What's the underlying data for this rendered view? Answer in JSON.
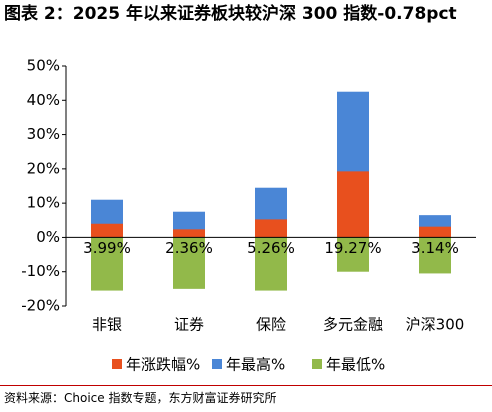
{
  "chart_data": {
    "type": "bar",
    "title": "图表 2：2025 年以来证券板块较沪深 300 指数-0.78pct",
    "source": "资料来源：Choice 指数专题，东方财富证券研究所",
    "categories": [
      "非银",
      "证券",
      "保险",
      "多元金融",
      "沪深300"
    ],
    "series": [
      {
        "name": "年涨跌幅%",
        "color": "#e8501e",
        "values": [
          3.99,
          2.36,
          5.26,
          19.27,
          3.14
        ],
        "value_labels": [
          "3.99%",
          "2.36%",
          "5.26%",
          "19.27%",
          "3.14%"
        ]
      },
      {
        "name": "年最高%",
        "color": "#4a86d6",
        "values": [
          11,
          7.5,
          14.5,
          42.5,
          6.5
        ]
      },
      {
        "name": "年最低%",
        "color": "#92b94a",
        "values": [
          -15.5,
          -15,
          -15.5,
          -10,
          -10.5
        ]
      }
    ],
    "ylim": [
      -20,
      50
    ],
    "yticks": [
      {
        "value": -20,
        "label": "-20%"
      },
      {
        "value": -10,
        "label": "-10%"
      },
      {
        "value": 0,
        "label": "0%"
      },
      {
        "value": 10,
        "label": "10%"
      },
      {
        "value": 20,
        "label": "20%"
      },
      {
        "value": 30,
        "label": "30%"
      },
      {
        "value": 40,
        "label": "40%"
      },
      {
        "value": 50,
        "label": "50%"
      }
    ],
    "legend": "bottom"
  }
}
